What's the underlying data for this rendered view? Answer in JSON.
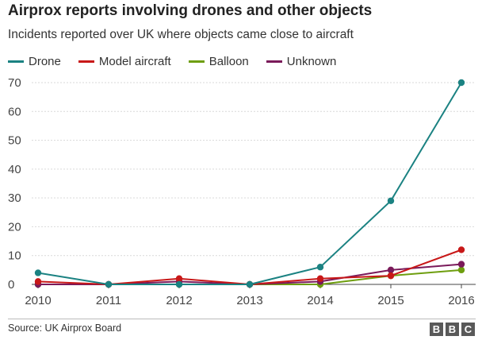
{
  "chart_data": {
    "type": "line",
    "title": "Airprox reports involving drones and other objects",
    "subtitle": "Incidents reported over UK where objects came close to aircraft",
    "x": [
      2010,
      2011,
      2012,
      2013,
      2014,
      2015,
      2016
    ],
    "ylim": [
      0,
      70
    ],
    "yticks": [
      0,
      10,
      20,
      30,
      40,
      50,
      60,
      70
    ],
    "grid": true,
    "legend": "top-left",
    "series": [
      {
        "name": "Drone",
        "color": "#1b8282",
        "values": [
          4,
          0,
          0,
          0,
          6,
          29,
          70
        ]
      },
      {
        "name": "Model aircraft",
        "color": "#c81818",
        "values": [
          1,
          0,
          2,
          0,
          2,
          3,
          12
        ]
      },
      {
        "name": "Balloon",
        "color": "#6e9e0f",
        "values": [
          0,
          0,
          0,
          0,
          0,
          3,
          5
        ]
      },
      {
        "name": "Unknown",
        "color": "#7a1a5a",
        "values": [
          0,
          0,
          1,
          0,
          1,
          5,
          7
        ]
      }
    ],
    "source": "Source: UK Airprox Board"
  },
  "branding": {
    "logo_letters": [
      "B",
      "B",
      "C"
    ]
  }
}
